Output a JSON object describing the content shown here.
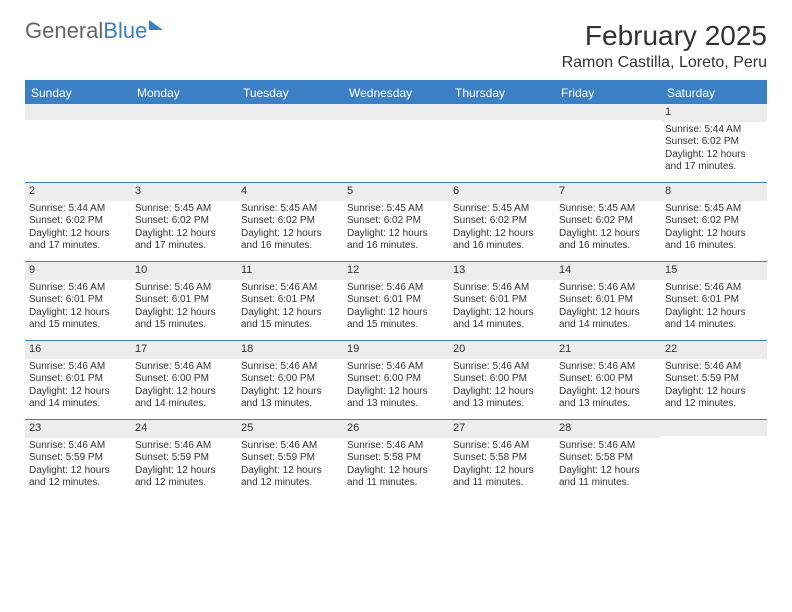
{
  "logo": {
    "word1": "General",
    "word2": "Blue"
  },
  "title": "February 2025",
  "location": "Ramon Castilla, Loreto, Peru",
  "colors": {
    "accent": "#3b7fc4",
    "daynum_bg": "#ededed",
    "text": "#333333",
    "bg": "#ffffff"
  },
  "days_of_week": [
    "Sunday",
    "Monday",
    "Tuesday",
    "Wednesday",
    "Thursday",
    "Friday",
    "Saturday"
  ],
  "weeks": [
    [
      {
        "n": "",
        "sr": "",
        "ss": "",
        "dl": ""
      },
      {
        "n": "",
        "sr": "",
        "ss": "",
        "dl": ""
      },
      {
        "n": "",
        "sr": "",
        "ss": "",
        "dl": ""
      },
      {
        "n": "",
        "sr": "",
        "ss": "",
        "dl": ""
      },
      {
        "n": "",
        "sr": "",
        "ss": "",
        "dl": ""
      },
      {
        "n": "",
        "sr": "",
        "ss": "",
        "dl": ""
      },
      {
        "n": "1",
        "sr": "Sunrise: 5:44 AM",
        "ss": "Sunset: 6:02 PM",
        "dl": "Daylight: 12 hours and 17 minutes."
      }
    ],
    [
      {
        "n": "2",
        "sr": "Sunrise: 5:44 AM",
        "ss": "Sunset: 6:02 PM",
        "dl": "Daylight: 12 hours and 17 minutes."
      },
      {
        "n": "3",
        "sr": "Sunrise: 5:45 AM",
        "ss": "Sunset: 6:02 PM",
        "dl": "Daylight: 12 hours and 17 minutes."
      },
      {
        "n": "4",
        "sr": "Sunrise: 5:45 AM",
        "ss": "Sunset: 6:02 PM",
        "dl": "Daylight: 12 hours and 16 minutes."
      },
      {
        "n": "5",
        "sr": "Sunrise: 5:45 AM",
        "ss": "Sunset: 6:02 PM",
        "dl": "Daylight: 12 hours and 16 minutes."
      },
      {
        "n": "6",
        "sr": "Sunrise: 5:45 AM",
        "ss": "Sunset: 6:02 PM",
        "dl": "Daylight: 12 hours and 16 minutes."
      },
      {
        "n": "7",
        "sr": "Sunrise: 5:45 AM",
        "ss": "Sunset: 6:02 PM",
        "dl": "Daylight: 12 hours and 16 minutes."
      },
      {
        "n": "8",
        "sr": "Sunrise: 5:45 AM",
        "ss": "Sunset: 6:02 PM",
        "dl": "Daylight: 12 hours and 16 minutes."
      }
    ],
    [
      {
        "n": "9",
        "sr": "Sunrise: 5:46 AM",
        "ss": "Sunset: 6:01 PM",
        "dl": "Daylight: 12 hours and 15 minutes."
      },
      {
        "n": "10",
        "sr": "Sunrise: 5:46 AM",
        "ss": "Sunset: 6:01 PM",
        "dl": "Daylight: 12 hours and 15 minutes."
      },
      {
        "n": "11",
        "sr": "Sunrise: 5:46 AM",
        "ss": "Sunset: 6:01 PM",
        "dl": "Daylight: 12 hours and 15 minutes."
      },
      {
        "n": "12",
        "sr": "Sunrise: 5:46 AM",
        "ss": "Sunset: 6:01 PM",
        "dl": "Daylight: 12 hours and 15 minutes."
      },
      {
        "n": "13",
        "sr": "Sunrise: 5:46 AM",
        "ss": "Sunset: 6:01 PM",
        "dl": "Daylight: 12 hours and 14 minutes."
      },
      {
        "n": "14",
        "sr": "Sunrise: 5:46 AM",
        "ss": "Sunset: 6:01 PM",
        "dl": "Daylight: 12 hours and 14 minutes."
      },
      {
        "n": "15",
        "sr": "Sunrise: 5:46 AM",
        "ss": "Sunset: 6:01 PM",
        "dl": "Daylight: 12 hours and 14 minutes."
      }
    ],
    [
      {
        "n": "16",
        "sr": "Sunrise: 5:46 AM",
        "ss": "Sunset: 6:01 PM",
        "dl": "Daylight: 12 hours and 14 minutes."
      },
      {
        "n": "17",
        "sr": "Sunrise: 5:46 AM",
        "ss": "Sunset: 6:00 PM",
        "dl": "Daylight: 12 hours and 14 minutes."
      },
      {
        "n": "18",
        "sr": "Sunrise: 5:46 AM",
        "ss": "Sunset: 6:00 PM",
        "dl": "Daylight: 12 hours and 13 minutes."
      },
      {
        "n": "19",
        "sr": "Sunrise: 5:46 AM",
        "ss": "Sunset: 6:00 PM",
        "dl": "Daylight: 12 hours and 13 minutes."
      },
      {
        "n": "20",
        "sr": "Sunrise: 5:46 AM",
        "ss": "Sunset: 6:00 PM",
        "dl": "Daylight: 12 hours and 13 minutes."
      },
      {
        "n": "21",
        "sr": "Sunrise: 5:46 AM",
        "ss": "Sunset: 6:00 PM",
        "dl": "Daylight: 12 hours and 13 minutes."
      },
      {
        "n": "22",
        "sr": "Sunrise: 5:46 AM",
        "ss": "Sunset: 5:59 PM",
        "dl": "Daylight: 12 hours and 12 minutes."
      }
    ],
    [
      {
        "n": "23",
        "sr": "Sunrise: 5:46 AM",
        "ss": "Sunset: 5:59 PM",
        "dl": "Daylight: 12 hours and 12 minutes."
      },
      {
        "n": "24",
        "sr": "Sunrise: 5:46 AM",
        "ss": "Sunset: 5:59 PM",
        "dl": "Daylight: 12 hours and 12 minutes."
      },
      {
        "n": "25",
        "sr": "Sunrise: 5:46 AM",
        "ss": "Sunset: 5:59 PM",
        "dl": "Daylight: 12 hours and 12 minutes."
      },
      {
        "n": "26",
        "sr": "Sunrise: 5:46 AM",
        "ss": "Sunset: 5:58 PM",
        "dl": "Daylight: 12 hours and 11 minutes."
      },
      {
        "n": "27",
        "sr": "Sunrise: 5:46 AM",
        "ss": "Sunset: 5:58 PM",
        "dl": "Daylight: 12 hours and 11 minutes."
      },
      {
        "n": "28",
        "sr": "Sunrise: 5:46 AM",
        "ss": "Sunset: 5:58 PM",
        "dl": "Daylight: 12 hours and 11 minutes."
      },
      {
        "n": "",
        "sr": "",
        "ss": "",
        "dl": ""
      }
    ]
  ]
}
